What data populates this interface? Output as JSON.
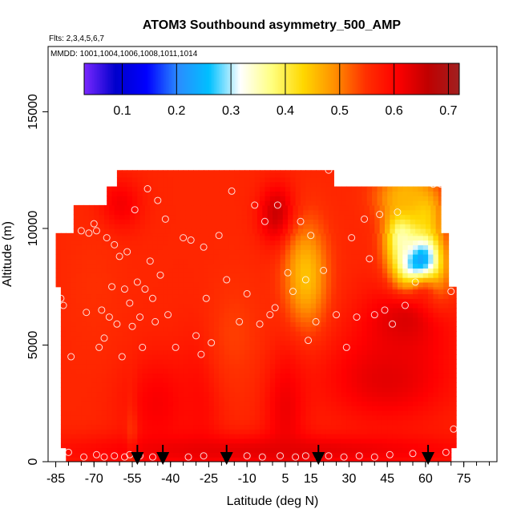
{
  "chart_data": {
    "type": "heatmap",
    "title": "ATOM3 Southbound asymmetry_500_AMP",
    "subtitle_flights": "Flts: 2,3,4,5,6,7",
    "subtitle_dates": "MMDD: 1001,1004,1006,1008,1011,1014",
    "xlabel": "Latitude (deg N)",
    "ylabel": "Altitude (m)",
    "xlim": [
      -88,
      88
    ],
    "ylim": [
      0,
      17800
    ],
    "x_ticks": [
      -85,
      -70,
      -55,
      -40,
      -25,
      -10,
      5,
      15,
      30,
      45,
      60,
      75
    ],
    "x_tick_labels": [
      "-85",
      "-70",
      "-55",
      "-40",
      "-25",
      "-10",
      "5",
      "15",
      "30",
      "45",
      "60",
      "75"
    ],
    "x_minor_step": 5,
    "y_ticks": [
      0,
      5000,
      10000,
      15000
    ],
    "y_tick_labels": [
      "0",
      "5000",
      "10000",
      "15000"
    ],
    "colorbar": {
      "min": 0.03,
      "max": 0.72,
      "ticks": [
        0.1,
        0.2,
        0.3,
        0.4,
        0.5,
        0.6,
        0.7
      ],
      "tick_labels": [
        "0.1",
        "0.2",
        "0.3",
        "0.4",
        "0.5",
        "0.6",
        "0.7"
      ],
      "colors": [
        "#7a28ff",
        "#0000cc",
        "#0000ff",
        "#2a8cff",
        "#00c0ff",
        "#ffffff",
        "#ffff80",
        "#ffd800",
        "#ff9000",
        "#ff3000",
        "#ff0000",
        "#c00000",
        "#a02020"
      ]
    },
    "field_base_value": 0.56,
    "field_features": [
      {
        "kind": "gauss",
        "lat": 57,
        "alt": 8300,
        "sx": 6,
        "sy": 1100,
        "value": 0.08
      },
      {
        "kind": "gauss",
        "lat": 52,
        "alt": 9800,
        "sx": 5,
        "sy": 900,
        "value": 0.33
      },
      {
        "kind": "gauss",
        "lat": 58,
        "alt": 10700,
        "sx": 5,
        "sy": 700,
        "value": 0.42
      },
      {
        "kind": "gauss",
        "lat": 60,
        "alt": 7200,
        "sx": 6,
        "sy": 700,
        "value": 0.49
      },
      {
        "kind": "gauss",
        "lat": 52,
        "alt": 11400,
        "sx": 8,
        "sy": 700,
        "value": 0.46
      },
      {
        "kind": "gauss",
        "lat": 52,
        "alt": 6000,
        "sx": 12,
        "sy": 1200,
        "value": 0.64
      },
      {
        "kind": "gauss",
        "lat": 45,
        "alt": 3600,
        "sx": 18,
        "sy": 1400,
        "value": 0.63
      },
      {
        "kind": "gauss",
        "lat": 2,
        "alt": 10600,
        "sx": 5,
        "sy": 900,
        "value": 0.66
      },
      {
        "kind": "gauss",
        "lat": 13,
        "alt": 8000,
        "sx": 6,
        "sy": 1600,
        "value": 0.45
      },
      {
        "kind": "gauss",
        "lat": -55,
        "alt": 800,
        "sx": 1.5,
        "sy": 1500,
        "value": 0.47
      },
      {
        "kind": "gauss",
        "lat": -45,
        "alt": 2500,
        "sx": 10,
        "sy": 1500,
        "value": 0.61
      },
      {
        "kind": "gauss",
        "lat": -28,
        "alt": 2800,
        "sx": 6,
        "sy": 2000,
        "value": 0.6
      },
      {
        "kind": "gauss",
        "lat": 5,
        "alt": 2300,
        "sx": 6,
        "sy": 1800,
        "value": 0.62
      },
      {
        "kind": "gauss",
        "lat": 0,
        "alt": 500,
        "sx": 60,
        "sy": 500,
        "value": 0.63
      },
      {
        "kind": "gauss",
        "lat": -60,
        "alt": 11000,
        "sx": 6,
        "sy": 800,
        "value": 0.62
      },
      {
        "kind": "gauss",
        "lat": -15,
        "alt": 5500,
        "sx": 8,
        "sy": 1800,
        "value": 0.54
      },
      {
        "kind": "gauss",
        "lat": -70,
        "alt": 7500,
        "sx": 8,
        "sy": 2000,
        "value": 0.55
      }
    ],
    "data_coverage": [
      {
        "alt_from": 0,
        "alt_to": 600,
        "lat_from": -81,
        "lat_to": 70
      },
      {
        "alt_from": 600,
        "alt_to": 7500,
        "lat_from": -83,
        "lat_to": 72
      },
      {
        "alt_from": 7500,
        "alt_to": 9800,
        "lat_from": -85,
        "lat_to": 69
      },
      {
        "alt_from": 9800,
        "alt_to": 11000,
        "lat_from": -78,
        "lat_to": 66
      },
      {
        "alt_from": 11000,
        "alt_to": 11800,
        "lat_from": -65,
        "lat_to": 66
      },
      {
        "alt_from": 11800,
        "alt_to": 12500,
        "lat_from": -61,
        "lat_to": 24
      }
    ],
    "sample_points": [
      [
        -80,
        400
      ],
      [
        -74,
        200
      ],
      [
        -69,
        300
      ],
      [
        -66,
        200
      ],
      [
        -62,
        250
      ],
      [
        -58,
        200
      ],
      [
        -56,
        300
      ],
      [
        -52,
        250
      ],
      [
        -47,
        200
      ],
      [
        -43,
        250
      ],
      [
        -33,
        200
      ],
      [
        -27,
        250
      ],
      [
        -18,
        200
      ],
      [
        -10,
        250
      ],
      [
        -4,
        200
      ],
      [
        3,
        250
      ],
      [
        9,
        200
      ],
      [
        13,
        250
      ],
      [
        18,
        200
      ],
      [
        22,
        250
      ],
      [
        28,
        200
      ],
      [
        34,
        250
      ],
      [
        40,
        200
      ],
      [
        46,
        300
      ],
      [
        55,
        350
      ],
      [
        68,
        400
      ],
      [
        -83,
        7000
      ],
      [
        -82,
        6700
      ],
      [
        -79,
        4500
      ],
      [
        -75,
        9900
      ],
      [
        -73,
        6400
      ],
      [
        -72,
        9800
      ],
      [
        -70,
        10200
      ],
      [
        -69,
        9900
      ],
      [
        -68,
        4900
      ],
      [
        -67,
        6500
      ],
      [
        -66,
        5300
      ],
      [
        -65,
        9600
      ],
      [
        -64,
        6200
      ],
      [
        -63,
        7500
      ],
      [
        -62,
        9300
      ],
      [
        -61,
        5900
      ],
      [
        -60,
        8800
      ],
      [
        -59,
        4500
      ],
      [
        -58,
        7400
      ],
      [
        -57,
        9000
      ],
      [
        -56,
        6800
      ],
      [
        -55,
        5800
      ],
      [
        -54,
        10800
      ],
      [
        -53,
        7700
      ],
      [
        -52,
        6200
      ],
      [
        -51,
        4900
      ],
      [
        -50,
        7400
      ],
      [
        -49,
        11700
      ],
      [
        -48,
        8600
      ],
      [
        -47,
        7000
      ],
      [
        -46,
        6000
      ],
      [
        -45,
        11200
      ],
      [
        -44,
        8000
      ],
      [
        -42,
        10400
      ],
      [
        -41,
        6300
      ],
      [
        -38,
        4900
      ],
      [
        -35,
        9600
      ],
      [
        -32,
        9500
      ],
      [
        -30,
        5400
      ],
      [
        -28,
        4600
      ],
      [
        -27,
        9200
      ],
      [
        -26,
        7000
      ],
      [
        -24,
        5100
      ],
      [
        -21,
        9700
      ],
      [
        -18,
        7800
      ],
      [
        -16,
        11600
      ],
      [
        -13,
        6000
      ],
      [
        -10,
        7200
      ],
      [
        -7,
        11000
      ],
      [
        -5,
        5900
      ],
      [
        -3,
        10300
      ],
      [
        -1,
        6300
      ],
      [
        1,
        6600
      ],
      [
        2,
        11000
      ],
      [
        6,
        8100
      ],
      [
        8,
        7300
      ],
      [
        11,
        10300
      ],
      [
        13,
        7800
      ],
      [
        14,
        5200
      ],
      [
        15,
        9700
      ],
      [
        17,
        6000
      ],
      [
        20,
        8200
      ],
      [
        22,
        12500
      ],
      [
        25,
        6300
      ],
      [
        29,
        4900
      ],
      [
        31,
        9600
      ],
      [
        33,
        6200
      ],
      [
        36,
        10400
      ],
      [
        38,
        8700
      ],
      [
        40,
        6300
      ],
      [
        42,
        10600
      ],
      [
        44,
        6500
      ],
      [
        47,
        5900
      ],
      [
        49,
        10700
      ],
      [
        52,
        6700
      ],
      [
        56,
        7700
      ],
      [
        63,
        11900
      ],
      [
        66,
        11900
      ],
      [
        70,
        7300
      ],
      [
        71,
        1400
      ]
    ],
    "arrow_markers_lat": [
      -53,
      -43,
      -18,
      18,
      61
    ]
  }
}
